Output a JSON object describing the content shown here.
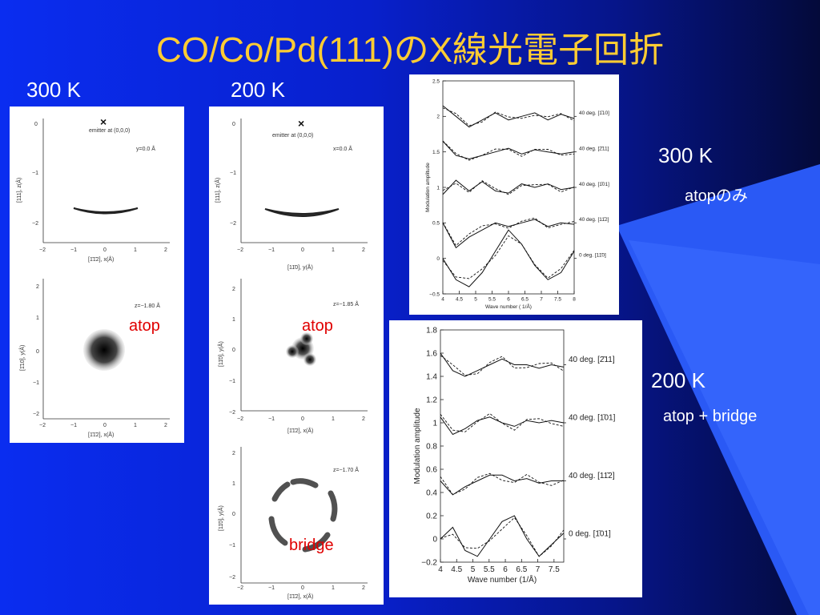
{
  "title": "CO/Co/Pd(111)のX線光電子回折",
  "labels": {
    "left_300": "300 K",
    "mid_200": "200 K",
    "right_300": "300 K",
    "right_300_sub": "atopのみ",
    "right_200": "200 K",
    "right_200_sub": "atop + bridge"
  },
  "panel_left": {
    "top": {
      "emitter": "emitter at (0,0,0)",
      "slice": "y=0.0 Å",
      "ylabel": "[111], z(Å)",
      "xlabel": "[1̄1̄2], x(Å)",
      "xticks": [
        "−2",
        "−1",
        "0",
        "1",
        "2"
      ],
      "yticks": [
        "0",
        "−1",
        "−2"
      ]
    },
    "bottom": {
      "slice": "z=−1.80 Å",
      "ylabel": "[1̄10], y(Å)",
      "xlabel": "[1̄1̄2], x(Å)",
      "site": "atop",
      "xticks": [
        "−2",
        "−1",
        "0",
        "1",
        "2"
      ],
      "yticks": [
        "2",
        "1",
        "0",
        "−1",
        "−2"
      ]
    }
  },
  "panel_mid": {
    "top": {
      "emitter": "emitter at (0,0,0)",
      "slice": "x=0.0 Å",
      "ylabel": "[111], z(Å)",
      "xlabel": "[11̄0], y(Å)",
      "xticks": [
        "−2",
        "−1",
        "0",
        "1",
        "2"
      ],
      "yticks": [
        "0",
        "−1",
        "−2"
      ]
    },
    "middle": {
      "slice": "z=−1.85 Å",
      "ylabel": "[11̄0], y(Å)",
      "xlabel": "[1̄1̄2], x(Å)",
      "site": "atop",
      "xticks": [
        "−2",
        "−1",
        "0",
        "1",
        "2"
      ],
      "yticks": [
        "2",
        "1",
        "0",
        "−1",
        "−2"
      ]
    },
    "bottom": {
      "slice": "z=−1.70 Å",
      "ylabel": "[11̄0], y(Å)",
      "xlabel": "[1̄1̄2], x(Å)",
      "site": "bridge",
      "xticks": [
        "−2",
        "−1",
        "0",
        "1",
        "2"
      ],
      "yticks": [
        "2",
        "1",
        "0",
        "−1",
        "−2"
      ]
    }
  },
  "chart_data": [
    {
      "type": "line",
      "xlabel": "Wave number ( 1/Å)",
      "ylabel": "Modulation amplitude",
      "xlim": [
        4,
        8
      ],
      "ylim": [
        -0.5,
        2.5
      ],
      "xticks": [
        "4",
        "4.5",
        "5",
        "5.5",
        "6",
        "6.5",
        "7",
        "7.5",
        "8"
      ],
      "yticks": [
        "2.5",
        "2",
        "1.5",
        "1",
        "0.5",
        "0",
        "−0.5"
      ],
      "series": [
        {
          "name": "40 deg. [1̄10]",
          "offset": 2.0,
          "values": [
            0.15,
            0.0,
            -0.15,
            -0.05,
            0.05,
            -0.05,
            0.0,
            0.05,
            -0.05,
            0.03,
            -0.03
          ]
        },
        {
          "name": "40 deg. [2̄11]",
          "offset": 1.5,
          "values": [
            0.15,
            -0.05,
            -0.1,
            -0.05,
            0.0,
            0.05,
            -0.03,
            0.03,
            0.0,
            -0.03,
            0.0
          ]
        },
        {
          "name": "40 deg. [1̄01]",
          "offset": 1.0,
          "values": [
            -0.1,
            0.1,
            -0.05,
            0.08,
            -0.05,
            -0.08,
            0.05,
            0.0,
            0.05,
            -0.03,
            0.0
          ]
        },
        {
          "name": "40 deg. [11̄2]",
          "offset": 0.5,
          "values": [
            0.0,
            -0.35,
            -0.2,
            -0.1,
            0.0,
            -0.05,
            0.0,
            0.05,
            -0.05,
            0.0,
            -0.02
          ]
        },
        {
          "name": "0 deg. [11̄0]",
          "offset": 0.0,
          "values": [
            0.0,
            -0.3,
            -0.4,
            -0.2,
            0.1,
            0.4,
            0.2,
            -0.1,
            -0.3,
            -0.2,
            0.1
          ]
        }
      ]
    },
    {
      "type": "line",
      "xlabel": "Wave number (1/Å)",
      "ylabel": "Modulation amplitude",
      "xlim": [
        4,
        7.8
      ],
      "ylim": [
        -0.2,
        1.8
      ],
      "xticks": [
        "4",
        "4.5",
        "5",
        "5.5",
        "6",
        "6.5",
        "7",
        "7.5"
      ],
      "yticks": [
        "1.8",
        "1.6",
        "1.4",
        "1.2",
        "1",
        "0.8",
        "0.6",
        "0.4",
        "0.2",
        "0",
        "−0.2"
      ],
      "series": [
        {
          "name": "40 deg. [2̄11]",
          "offset": 1.5,
          "values": [
            0.1,
            -0.05,
            -0.1,
            -0.05,
            0.0,
            0.05,
            0.0,
            0.0,
            -0.03,
            0.0,
            -0.02
          ]
        },
        {
          "name": "40 deg. [1̄01]",
          "offset": 1.0,
          "values": [
            0.05,
            -0.1,
            -0.05,
            0.02,
            0.05,
            0.0,
            -0.03,
            0.02,
            0.0,
            0.02,
            0.0
          ]
        },
        {
          "name": "40 deg. [11̄2]",
          "offset": 0.5,
          "values": [
            0.0,
            -0.12,
            -0.05,
            0.0,
            0.05,
            0.05,
            0.0,
            0.02,
            -0.02,
            0.0,
            0.0
          ]
        },
        {
          "name": "0 deg. [1̄01]",
          "offset": 0.0,
          "values": [
            0.0,
            0.1,
            -0.1,
            -0.15,
            0.0,
            0.15,
            0.2,
            0.0,
            -0.15,
            -0.05,
            0.05
          ]
        }
      ]
    }
  ]
}
